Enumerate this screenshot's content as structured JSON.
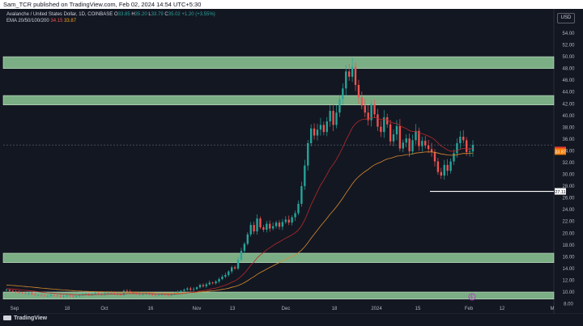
{
  "header": {
    "publisher_line": "Sam_TCR published on TradingView.com, Feb 02, 2024 14:54 UTC+5:30"
  },
  "legend": {
    "symbol": "Avalanche / United States Dollar, 1D, COINBASE",
    "o_label": "O",
    "o_value": "33.85",
    "h_label": "H",
    "h_value": "35.20",
    "l_label": "L",
    "l_value": "33.79",
    "c_label": "C",
    "c_value": "35.02",
    "change": "+1.20 (+3.55%)",
    "ema_label": "EMA 20/50/100/200",
    "ema_val_1": "34.15",
    "ema_val_2": "33.87"
  },
  "currency": "USD",
  "price_labels": {
    "last_price": "34.15",
    "ema_price": "33.87",
    "level_price": "27.11"
  },
  "footer": {
    "logo_text": "TradingView"
  },
  "colors": {
    "background": "#131722",
    "up": "#26a69a",
    "down": "#ef5350",
    "zone": "#8fc996",
    "ema_red": "#b72a2a",
    "ema_orange": "#d88a2e"
  },
  "chart_data": {
    "type": "candlestick",
    "title": "Avalanche / United States Dollar, 1D, COINBASE",
    "y_ticks": [
      "8.00",
      "10.00",
      "12.00",
      "14.00",
      "16.00",
      "18.00",
      "20.00",
      "22.00",
      "24.00",
      "26.00",
      "28.00",
      "30.00",
      "32.00",
      "34.00",
      "36.00",
      "38.00",
      "40.00",
      "42.00",
      "44.00",
      "46.00",
      "48.00",
      "50.00",
      "52.00",
      "54.00"
    ],
    "x_ticks": [
      "Sep",
      "18",
      "Oct",
      "16",
      "Nov",
      "13",
      "Dec",
      "18",
      "2024",
      "15",
      "Feb",
      "12",
      "M"
    ],
    "ylim": [
      8,
      56
    ],
    "zones": [
      [
        48.0,
        50.0
      ],
      [
        41.8,
        43.4
      ],
      [
        15.0,
        16.6
      ],
      [
        8.8,
        10.0
      ]
    ],
    "support_level": 27.11,
    "closes": [
      10.4,
      10.2,
      10.1,
      10.0,
      9.9,
      9.8,
      9.7,
      9.8,
      9.6,
      9.5,
      9.5,
      9.4,
      9.3,
      9.3,
      9.5,
      9.4,
      9.3,
      9.2,
      9.3,
      9.4,
      9.3,
      9.2,
      9.3,
      9.4,
      9.6,
      9.7,
      9.5,
      9.6,
      9.8,
      9.7,
      9.6,
      9.8,
      9.9,
      9.8,
      9.7,
      9.6,
      9.5,
      10.2,
      10.1,
      9.9,
      9.8,
      9.7,
      9.6,
      9.7,
      9.8,
      9.6,
      9.5,
      9.4,
      9.5,
      9.6,
      9.5,
      9.4,
      9.6,
      9.8,
      10.0,
      10.2,
      10.4,
      10.6,
      10.4,
      10.5,
      10.8,
      11.2,
      11.0,
      11.3,
      11.6,
      11.5,
      11.8,
      12.2,
      12.6,
      12.9,
      13.5,
      14.2,
      14.0,
      15.5,
      17.0,
      18.2,
      19.8,
      21.4,
      20.3,
      22.5,
      21.0,
      20.6,
      21.6,
      20.8,
      21.2,
      21.8,
      21.1,
      21.9,
      22.3,
      21.8,
      22.7,
      23.4,
      25.0,
      28.0,
      31.5,
      35.3,
      37.8,
      36.6,
      37.6,
      38.4,
      37.2,
      39.0,
      40.8,
      38.4,
      40.5,
      42.8,
      44.6,
      47.5,
      46.6,
      48.3,
      45.2,
      43.1,
      41.7,
      40.5,
      39.2,
      41.9,
      40.2,
      38.1,
      37.2,
      39.7,
      38.5,
      35.6,
      36.8,
      38.2,
      34.4,
      35.4,
      36.1,
      33.9,
      35.8,
      37.4,
      34.8,
      35.7,
      34.9,
      34.3,
      33.8,
      32.2,
      30.4,
      29.8,
      31.6,
      30.6,
      32.2,
      33.6,
      35.3,
      36.4,
      35.8,
      33.8,
      33.9,
      35.0
    ],
    "x_start_days": 0,
    "series": [
      {
        "name": "Avalanche / United States Dollar",
        "type": "candles"
      },
      {
        "name": "EMA 20",
        "ema_last": 34.15
      },
      {
        "name": "EMA 50",
        "ema_last": 33.87
      }
    ],
    "grid": false,
    "legend_placement": "top-left"
  }
}
